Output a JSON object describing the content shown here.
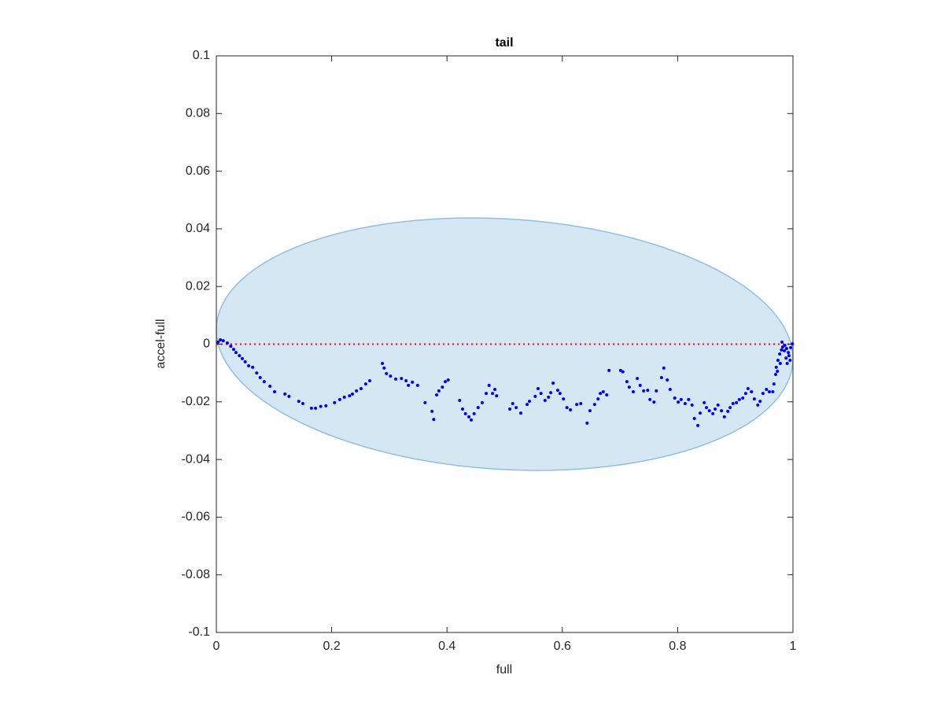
{
  "chart_data": {
    "type": "scatter",
    "title": "tail",
    "xlabel": "full",
    "ylabel": "accel-full",
    "xlim": [
      0,
      1
    ],
    "ylim": [
      -0.1,
      0.1
    ],
    "xticks": [
      0,
      0.2,
      0.4,
      0.6,
      0.8,
      1
    ],
    "yticks": [
      -0.1,
      -0.08,
      -0.06,
      -0.04,
      -0.02,
      0,
      0.02,
      0.04,
      0.06,
      0.08,
      0.1
    ],
    "grid": false,
    "ellipse": {
      "center": [
        0.5,
        0
      ],
      "radii": [
        0.5,
        0.0435
      ],
      "shear": -0.01,
      "fill": "#d6e7f4",
      "edge": "#8fc0e0"
    },
    "reference_line": {
      "y": 0,
      "color": "#ff0000"
    },
    "series": [
      {
        "color": "#0000ff",
        "x": [
          0.003,
          0.007,
          0.012,
          0.019,
          0.025,
          0.03,
          0.034,
          0.04,
          0.045,
          0.05,
          0.056,
          0.063,
          0.07,
          0.076,
          0.083,
          0.093,
          0.101,
          0.119,
          0.126,
          0.143,
          0.15,
          0.165,
          0.172,
          0.181,
          0.19,
          0.205,
          0.214,
          0.222,
          0.231,
          0.236,
          0.243,
          0.251,
          0.259,
          0.266,
          0.288,
          0.291,
          0.295,
          0.302,
          0.311,
          0.321,
          0.329,
          0.333,
          0.34,
          0.349,
          0.362,
          0.374,
          0.377,
          0.382,
          0.386,
          0.392,
          0.397,
          0.402,
          0.422,
          0.427,
          0.432,
          0.438,
          0.442,
          0.447,
          0.454,
          0.461,
          0.468,
          0.473,
          0.479,
          0.483,
          0.486,
          0.509,
          0.514,
          0.52,
          0.528,
          0.539,
          0.543,
          0.553,
          0.558,
          0.563,
          0.57,
          0.576,
          0.58,
          0.584,
          0.592,
          0.596,
          0.602,
          0.608,
          0.614,
          0.625,
          0.632,
          0.643,
          0.648,
          0.656,
          0.662,
          0.666,
          0.671,
          0.677,
          0.681,
          0.701,
          0.705,
          0.712,
          0.716,
          0.723,
          0.73,
          0.735,
          0.741,
          0.748,
          0.752,
          0.759,
          0.763,
          0.772,
          0.776,
          0.782,
          0.787,
          0.795,
          0.801,
          0.806,
          0.813,
          0.819,
          0.825,
          0.829,
          0.835,
          0.839,
          0.846,
          0.85,
          0.855,
          0.861,
          0.865,
          0.87,
          0.876,
          0.881,
          0.887,
          0.891,
          0.896,
          0.902,
          0.907,
          0.913,
          0.918,
          0.922,
          0.928,
          0.933,
          0.939,
          0.943,
          0.948,
          0.954,
          0.959,
          0.965,
          0.967,
          0.97,
          0.971,
          0.974,
          0.977,
          0.98,
          0.982,
          0.985,
          0.988,
          0.99,
          0.993,
          0.996,
          0.999,
          0.981,
          0.986,
          0.992,
          0.978,
          0.973,
          0.989,
          0.995
        ],
        "values": [
          0.0007,
          0.0015,
          0.0012,
          0.0004,
          -0.0007,
          -0.0018,
          -0.0029,
          -0.004,
          -0.005,
          -0.0061,
          -0.0075,
          -0.008,
          -0.01,
          -0.0116,
          -0.013,
          -0.0146,
          -0.0165,
          -0.0173,
          -0.0181,
          -0.0198,
          -0.0206,
          -0.0222,
          -0.0222,
          -0.0216,
          -0.0214,
          -0.0203,
          -0.0192,
          -0.0184,
          -0.0179,
          -0.0173,
          -0.0162,
          -0.0154,
          -0.0138,
          -0.0127,
          -0.0067,
          -0.0083,
          -0.0102,
          -0.0111,
          -0.0121,
          -0.0119,
          -0.0127,
          -0.0143,
          -0.0132,
          -0.0143,
          -0.0203,
          -0.0233,
          -0.0261,
          -0.0176,
          -0.0162,
          -0.0149,
          -0.013,
          -0.0124,
          -0.0195,
          -0.0225,
          -0.0241,
          -0.0252,
          -0.0263,
          -0.0241,
          -0.022,
          -0.0203,
          -0.0171,
          -0.0143,
          -0.0171,
          -0.0157,
          -0.0179,
          -0.0225,
          -0.0206,
          -0.022,
          -0.0239,
          -0.0209,
          -0.0198,
          -0.0181,
          -0.0154,
          -0.0171,
          -0.0195,
          -0.0184,
          -0.0168,
          -0.0135,
          -0.016,
          -0.0171,
          -0.019,
          -0.022,
          -0.0228,
          -0.0209,
          -0.0206,
          -0.0274,
          -0.0231,
          -0.0209,
          -0.019,
          -0.0171,
          -0.0165,
          -0.0176,
          -0.0091,
          -0.0091,
          -0.0096,
          -0.013,
          -0.0149,
          -0.0165,
          -0.0119,
          -0.0143,
          -0.0162,
          -0.016,
          -0.0192,
          -0.0201,
          -0.0162,
          -0.0116,
          -0.0083,
          -0.0124,
          -0.0157,
          -0.0187,
          -0.0201,
          -0.0192,
          -0.0206,
          -0.0192,
          -0.0211,
          -0.0258,
          -0.0282,
          -0.0239,
          -0.0203,
          -0.022,
          -0.0231,
          -0.0241,
          -0.0225,
          -0.0211,
          -0.0231,
          -0.0252,
          -0.0233,
          -0.022,
          -0.0206,
          -0.0203,
          -0.0192,
          -0.0187,
          -0.0171,
          -0.0154,
          -0.0165,
          -0.019,
          -0.0211,
          -0.0198,
          -0.0171,
          -0.0157,
          -0.0165,
          -0.0165,
          -0.0138,
          -0.0105,
          -0.008,
          -0.0056,
          -0.0034,
          -0.002,
          -0.001,
          -0.0023,
          -0.0048,
          -0.0067,
          -0.004,
          -0.0012,
          0.0001,
          0.0007,
          -0.0004,
          -0.0029,
          -0.0067,
          -0.0094,
          -0.0015,
          -0.0056
        ]
      }
    ]
  }
}
